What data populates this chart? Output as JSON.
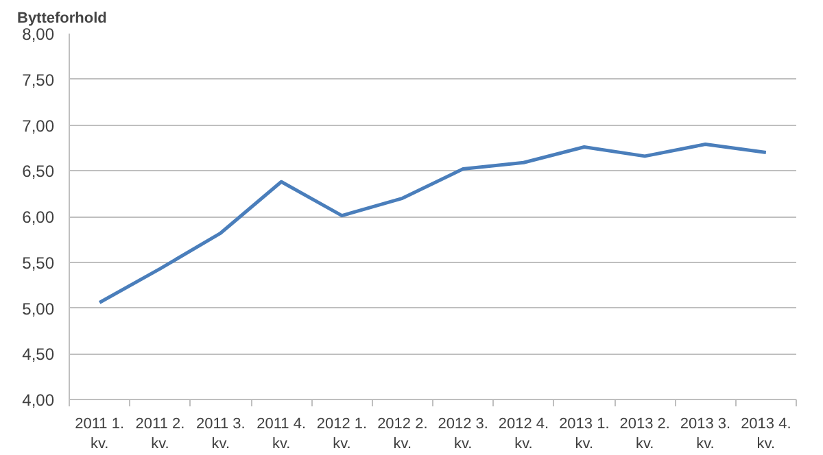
{
  "chart_data": {
    "type": "line",
    "ylabel": "Bytteforhold",
    "categories": [
      "2011 1. kv.",
      "2011 2. kv.",
      "2011 3. kv.",
      "2011 4. kv.",
      "2012 1. kv.",
      "2012 2. kv.",
      "2012 3. kv.",
      "2012 4. kv.",
      "2013 1. kv.",
      "2013 2. kv.",
      "2013 3. kv.",
      "2013 4. kv."
    ],
    "series": [
      {
        "color": "#4a7ebb",
        "values": [
          5.06,
          5.43,
          5.82,
          6.38,
          6.01,
          6.2,
          6.52,
          6.59,
          6.76,
          6.66,
          6.79,
          6.7
        ]
      }
    ],
    "ylim": [
      4,
      8
    ],
    "yticks": [
      {
        "value": 4,
        "label": "4,00"
      },
      {
        "value": 4.5,
        "label": "4,50"
      },
      {
        "value": 5,
        "label": "5,00"
      },
      {
        "value": 5.5,
        "label": "5,50"
      },
      {
        "value": 6,
        "label": "6,00"
      },
      {
        "value": 6.5,
        "label": "6,50"
      },
      {
        "value": 7,
        "label": "7,00"
      },
      {
        "value": 7.5,
        "label": "7,50"
      },
      {
        "value": 8,
        "label": "8,00"
      }
    ],
    "grid": "y",
    "marker": "none",
    "line_style": "solid"
  }
}
